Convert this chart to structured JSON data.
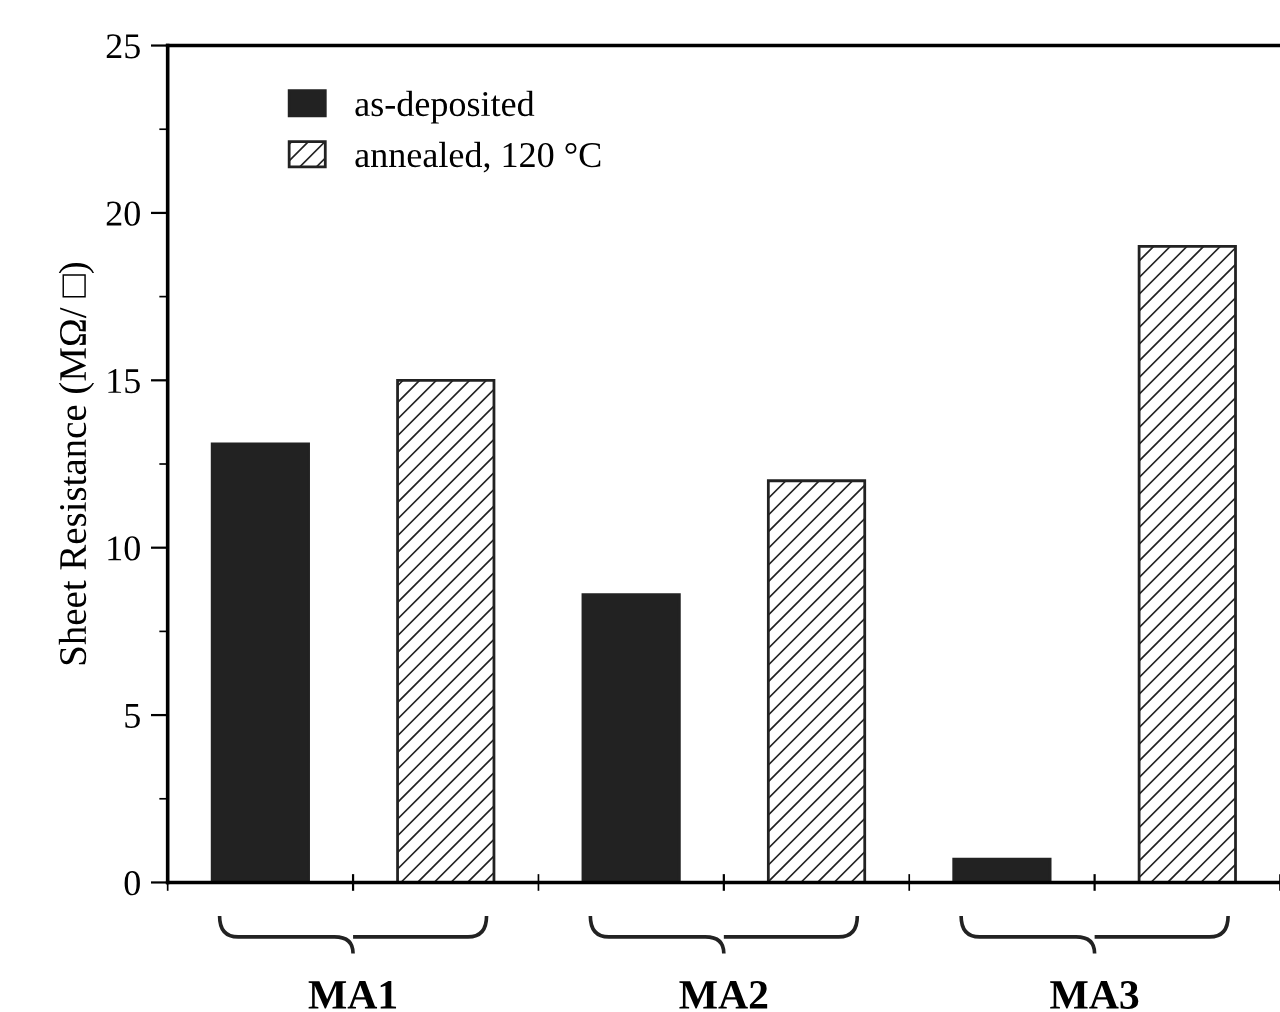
{
  "chart_data": {
    "type": "bar",
    "ylabel": "Sheet Resistance (MΩ/ □)",
    "categories": [
      "MA1",
      "MA2",
      "MA3"
    ],
    "series": [
      {
        "name": "as-deposited",
        "color": "#222222",
        "values": [
          13.1,
          8.6,
          0.7
        ]
      },
      {
        "name": "annealed, 120 °C",
        "color": "#222222",
        "values": [
          15.0,
          12.0,
          19.0
        ]
      }
    ],
    "ylim": [
      0,
      25
    ],
    "yticks": [
      0,
      5,
      10,
      15,
      20,
      25
    ],
    "grid": false,
    "legend": "top left"
  }
}
